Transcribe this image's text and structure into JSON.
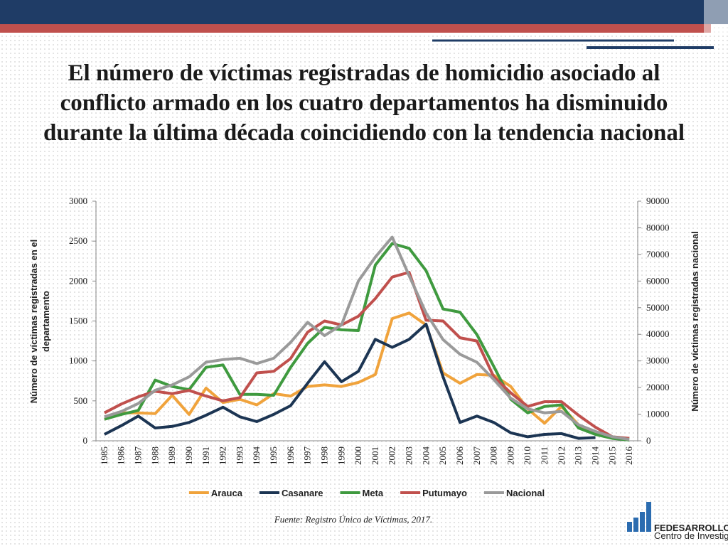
{
  "title": "El número de víctimas registradas de homicidio asociado al conflicto armado en los cuatro departamentos ha disminuido durante la última década coincidiendo con la tendencia nacional",
  "chart_data": {
    "type": "line",
    "y_label": "Número de víctimas registradas en el departamento",
    "y2_label": "Número de víctimas registradas nacional",
    "categories": [
      "1985",
      "1986",
      "1987",
      "1988",
      "1989",
      "1990",
      "1991",
      "1992",
      "1993",
      "1994",
      "1995",
      "1996",
      "1997",
      "1998",
      "1999",
      "2000",
      "2001",
      "2002",
      "2003",
      "2004",
      "2005",
      "2006",
      "2007",
      "2008",
      "2009",
      "2010",
      "2011",
      "2012",
      "2013",
      "2014",
      "2015",
      "2016"
    ],
    "series": [
      {
        "name": "Arauca",
        "color": "#f0a33c",
        "values": [
          270,
          350,
          350,
          340,
          570,
          330,
          660,
          480,
          520,
          450,
          590,
          560,
          680,
          700,
          680,
          730,
          830,
          1530,
          1600,
          1450,
          850,
          720,
          830,
          820,
          680,
          400,
          220,
          430,
          200,
          100,
          40,
          30
        ]
      },
      {
        "name": "Casanare",
        "color": "#1c3553",
        "values": [
          80,
          190,
          310,
          160,
          180,
          230,
          320,
          420,
          300,
          240,
          330,
          440,
          720,
          990,
          740,
          870,
          1270,
          1170,
          1270,
          1460,
          800,
          230,
          310,
          230,
          100,
          50,
          80,
          90,
          30,
          40,
          null,
          null
        ]
      },
      {
        "name": "Meta",
        "color": "#3f9a3f",
        "values": [
          270,
          330,
          380,
          760,
          680,
          640,
          920,
          950,
          580,
          580,
          570,
          920,
          1220,
          1420,
          1390,
          1380,
          2200,
          2470,
          2410,
          2130,
          1650,
          1610,
          1330,
          930,
          520,
          350,
          430,
          450,
          160,
          80,
          30,
          10
        ]
      },
      {
        "name": "Putumayo",
        "color": "#c0504d",
        "values": [
          350,
          460,
          550,
          620,
          590,
          630,
          560,
          500,
          540,
          850,
          870,
          1030,
          1360,
          1500,
          1450,
          1560,
          1780,
          2050,
          2110,
          1510,
          1500,
          1290,
          1250,
          800,
          600,
          430,
          490,
          490,
          320,
          170,
          50,
          30
        ]
      },
      {
        "name": "Nacional",
        "color": "#9a9a9a",
        "axis": "y2",
        "values": [
          9000,
          11000,
          14000,
          19000,
          21000,
          24000,
          29500,
          30500,
          31000,
          29000,
          31000,
          37000,
          44500,
          39500,
          43500,
          60000,
          69000,
          76500,
          62000,
          48000,
          38000,
          32500,
          29500,
          23000,
          16000,
          12000,
          10500,
          11000,
          6000,
          3500,
          1500,
          500
        ]
      }
    ],
    "ylim": [
      0,
      3000
    ],
    "yticks": [
      0,
      500,
      1000,
      1500,
      2000,
      2500,
      3000
    ],
    "y2lim": [
      0,
      90000
    ],
    "y2ticks": [
      0,
      10000,
      20000,
      30000,
      40000,
      50000,
      60000,
      70000,
      80000,
      90000
    ],
    "legend": "bottom"
  },
  "source": "Fuente: Registro Único de Víctimas, 2017.",
  "logo": {
    "name": "FEDESARROLLO",
    "tagline": "Centro de Investigación Económica y Social"
  }
}
